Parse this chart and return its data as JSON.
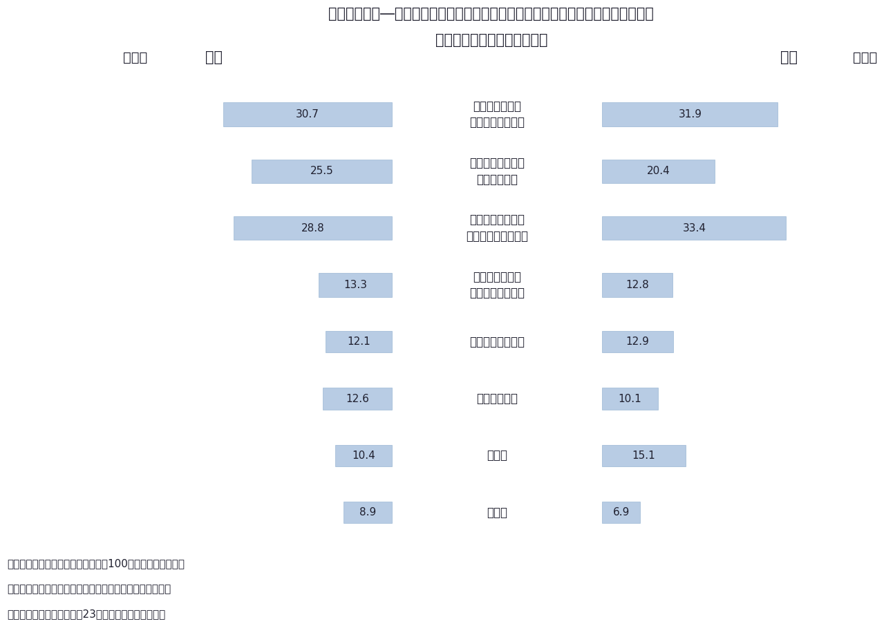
{
  "title_line1": "図表２　外来―入院別にみたセカンドオピニオンを受けなかった理由（複数回答）",
  "title_line2": "（受けたことがない者のみ）",
  "left_header": "外来",
  "right_header": "入院",
  "pct_label": "（％）",
  "categories": [
    "受けた方がいい\nのか判断できない",
    "主治医に受けたい\nと言いづらい",
    "どうすれば受けら\nれるのかわからない",
    "受けられる医療\n機関が近くにない",
    "手続きが面倒そう",
    "費用がかかる",
    "その他",
    "無回答"
  ],
  "left_values": [
    30.7,
    25.5,
    28.8,
    13.3,
    12.1,
    12.6,
    10.4,
    8.9
  ],
  "right_values": [
    31.9,
    20.4,
    33.4,
    12.8,
    12.9,
    10.1,
    15.1,
    6.9
  ],
  "bar_color": "#b8cce4",
  "bar_edge_color": "#9ab7d3",
  "text_color": "#1f1f2e",
  "background_color": "#ffffff",
  "title_fontsize": 15,
  "header_fontsize": 14,
  "label_fontsize": 12,
  "value_fontsize": 11,
  "note_fontsize": 11,
  "notes": [
    "（注１）「受けたことがない」者を100とした割合である。",
    "（注２）岩手県、宮城県及び福島県を除いた数値である。",
    "（出所）厚生労働省「平成23年受療行動調査の概況」"
  ],
  "max_val": 35.0
}
